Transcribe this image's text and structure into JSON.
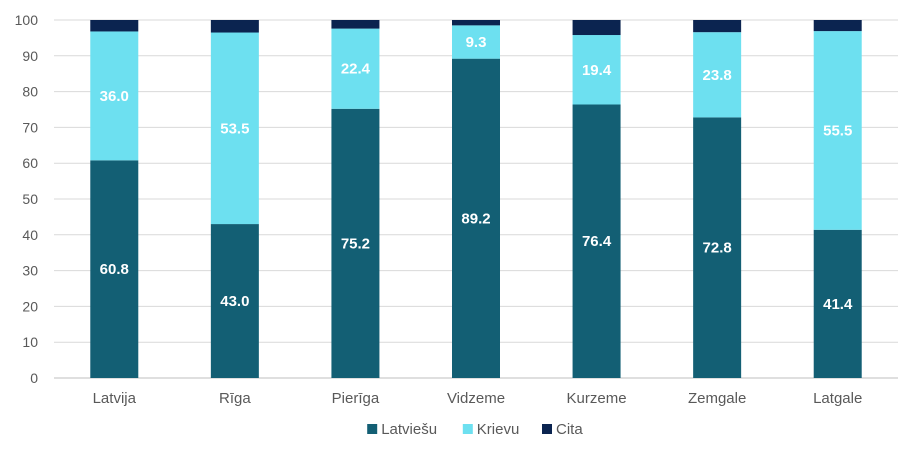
{
  "chart_data": {
    "type": "bar",
    "stacked": true,
    "percent_stacked": true,
    "title": "",
    "xlabel": "",
    "ylabel": "",
    "ylim": [
      0,
      100
    ],
    "yticks": [
      0,
      10,
      20,
      30,
      40,
      50,
      60,
      70,
      80,
      90,
      100
    ],
    "grid": true,
    "legend_position": "bottom",
    "categories": [
      "Latvija",
      "Rīga",
      "Pierīga",
      "Vidzeme",
      "Kurzeme",
      "Zemgale",
      "Latgale"
    ],
    "series": [
      {
        "name": "Latviešu",
        "color": "#135f74",
        "values": [
          60.8,
          43.0,
          75.2,
          89.2,
          76.4,
          72.8,
          41.4
        ],
        "labels": [
          "60.8",
          "43.0",
          "75.2",
          "89.2",
          "76.4",
          "72.8",
          "41.4"
        ]
      },
      {
        "name": "Krievu",
        "color": "#6de0f0",
        "values": [
          36.0,
          53.5,
          22.4,
          9.3,
          19.4,
          23.8,
          55.5
        ],
        "labels": [
          "36.0",
          "53.5",
          "22.4",
          "9.3",
          "19.4",
          "23.8",
          "55.5"
        ]
      },
      {
        "name": "Cita",
        "color": "#0b2450",
        "values": [
          3.2,
          3.5,
          2.4,
          1.5,
          4.2,
          3.4,
          3.1
        ],
        "labels": [
          "",
          "",
          "",
          "",
          "",
          "",
          ""
        ]
      }
    ]
  }
}
